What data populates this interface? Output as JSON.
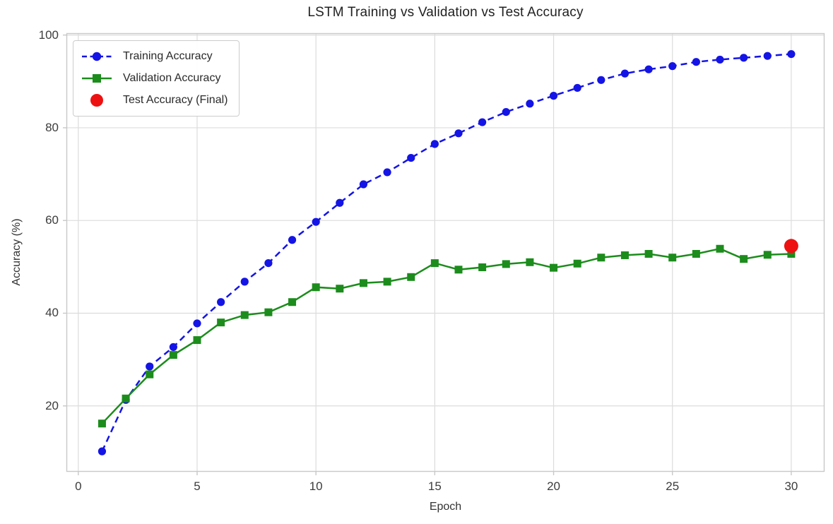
{
  "chart_data": {
    "type": "line",
    "title": "LSTM Training vs Validation vs Test Accuracy",
    "xlabel": "Epoch",
    "ylabel": "Accuracy (%)",
    "grid": true,
    "legend_position": "upper-left",
    "xlim": [
      -0.5,
      31.4
    ],
    "ylim": [
      5.8,
      100.4
    ],
    "x_ticks": [
      0,
      5,
      10,
      15,
      20,
      25,
      30
    ],
    "y_ticks": [
      20,
      40,
      60,
      80,
      100
    ],
    "x": [
      1,
      2,
      3,
      4,
      5,
      6,
      7,
      8,
      9,
      10,
      11,
      12,
      13,
      14,
      15,
      16,
      17,
      18,
      19,
      20,
      21,
      22,
      23,
      24,
      25,
      26,
      27,
      28,
      29,
      30
    ],
    "series": [
      {
        "name": "Training Accuracy",
        "color": "#1414e6",
        "marker": "circle",
        "line_style": "dashed",
        "values": [
          10.2,
          21.3,
          28.5,
          32.7,
          37.8,
          42.4,
          46.8,
          50.8,
          55.8,
          59.7,
          63.8,
          67.8,
          70.4,
          73.5,
          76.5,
          78.8,
          81.2,
          83.4,
          85.2,
          86.9,
          88.6,
          90.3,
          91.7,
          92.6,
          93.3,
          94.2,
          94.7,
          95.1,
          95.5,
          95.9
        ]
      },
      {
        "name": "Validation Accuracy",
        "color": "#1c8c1c",
        "marker": "square",
        "line_style": "solid",
        "values": [
          16.2,
          21.6,
          26.8,
          31.0,
          34.2,
          38.0,
          39.6,
          40.2,
          42.4,
          45.6,
          45.3,
          46.5,
          46.8,
          47.8,
          50.8,
          49.4,
          49.9,
          50.6,
          51.0,
          49.8,
          50.7,
          52.0,
          52.5,
          52.8,
          52.0,
          52.8,
          53.9,
          51.7,
          52.6,
          52.8
        ]
      }
    ],
    "test_point": {
      "name": "Test Accuracy (Final)",
      "color": "#ee1111",
      "x": 30,
      "y": 54.5
    },
    "colors": {
      "gridline": "#dcdcdc",
      "plot_border": "#c8c8c8",
      "tick_text": "#3c3c3c"
    }
  }
}
